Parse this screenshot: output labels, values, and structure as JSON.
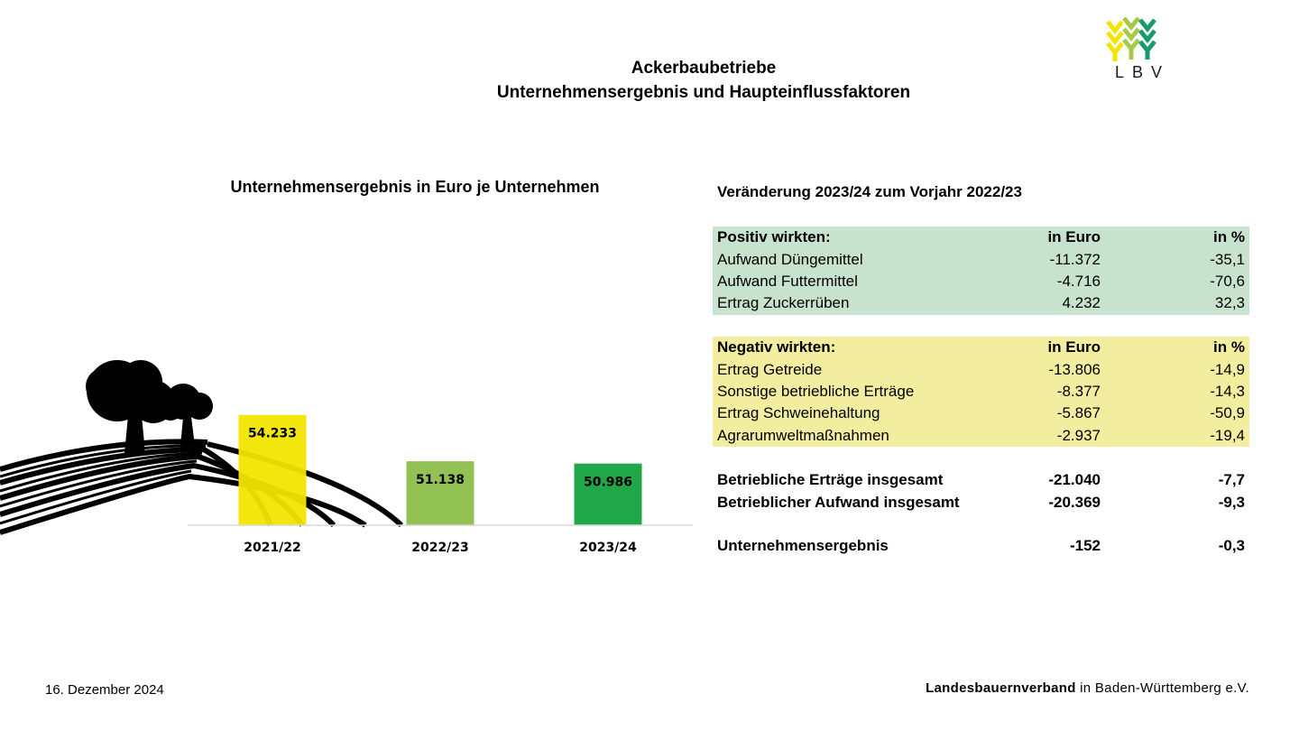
{
  "header": {
    "title_line1": "Ackerbaubetriebe",
    "title_line2": "Unternehmensergebnis und Haupteinflussfaktoren",
    "logo_text": "LBV"
  },
  "chart_title": "Unternehmensergebnis in Euro je Unternehmen",
  "chart_data": {
    "type": "bar",
    "title": "Unternehmensergebnis in Euro je Unternehmen",
    "categories": [
      "2021/22",
      "2022/23",
      "2023/24"
    ],
    "values": [
      54233,
      51138,
      50986
    ],
    "value_labels": [
      "54.233",
      "51.138",
      "50.986"
    ],
    "colors": [
      "#f2e500",
      "#92c154",
      "#22a64a"
    ],
    "xlabel": "",
    "ylabel": "",
    "ylim": [
      0,
      60000
    ],
    "axis_break": true,
    "grid": false,
    "legend": "none"
  },
  "table": {
    "title": "Veränderung 2023/24 zum Vorjahr 2022/23",
    "positive": {
      "header": [
        "Positiv wirkten:",
        "in Euro",
        "in %"
      ],
      "rows": [
        [
          "Aufwand Düngemittel",
          "-11.372",
          "-35,1"
        ],
        [
          "Aufwand Futtermittel",
          "-4.716",
          "-70,6"
        ],
        [
          "Ertrag Zuckerrüben",
          "4.232",
          "32,3"
        ]
      ],
      "color": "#c7e3cd"
    },
    "negative": {
      "header": [
        "Negativ wirkten:",
        "in Euro",
        "in %"
      ],
      "rows": [
        [
          "Ertrag Getreide",
          "-13.806",
          "-14,9"
        ],
        [
          "Sonstige betriebliche Erträge",
          "-8.377",
          "-14,3"
        ],
        [
          "Ertrag Schweinehaltung",
          "-5.867",
          "-50,9"
        ],
        [
          "Agrarumweltmaßnahmen",
          "-2.937",
          "-19,4"
        ]
      ],
      "color": "#f3ee9f"
    },
    "totals": [
      [
        "Betriebliche Erträge insgesamt",
        "-21.040",
        "-7,7"
      ],
      [
        "Betrieblicher Aufwand insgesamt",
        "-20.369",
        "-9,3"
      ]
    ],
    "result": [
      "Unternehmensergebnis",
      "-152",
      "-0,3"
    ]
  },
  "footer": {
    "date": "16. Dezember 2024",
    "org_bold": "Landesbauernverband",
    "org_rest": " in Baden-Württemberg e.V."
  }
}
